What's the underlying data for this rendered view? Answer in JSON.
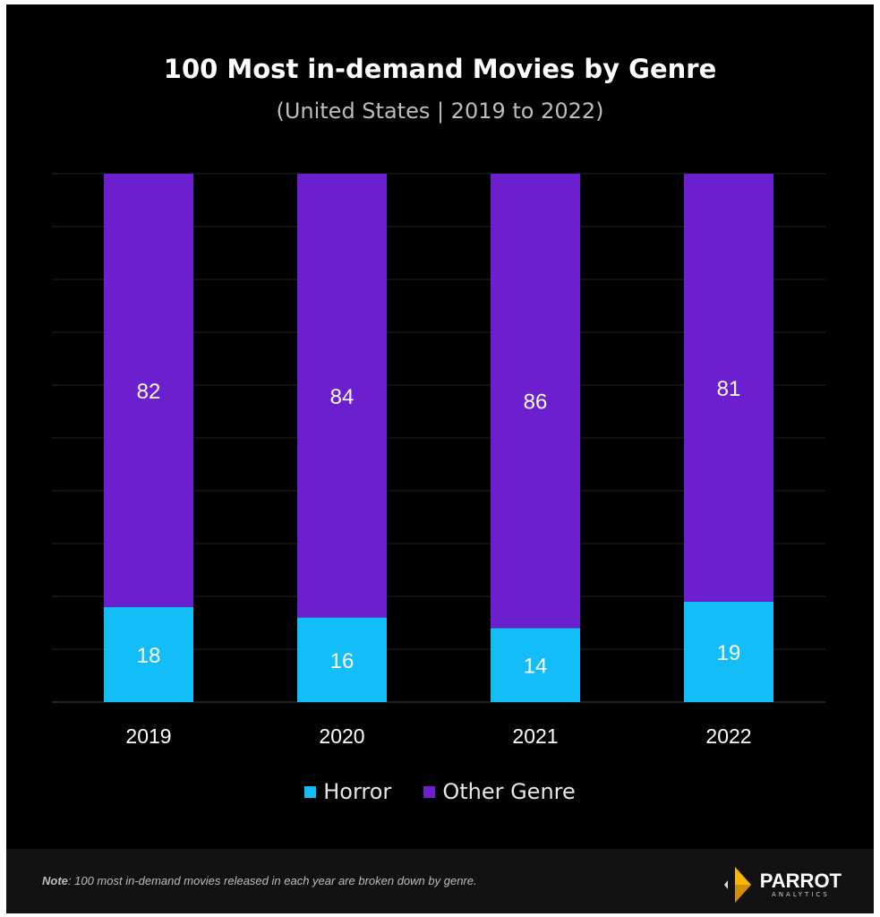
{
  "chart_data": {
    "type": "bar",
    "stacked": true,
    "title": "100 Most in-demand Movies by Genre",
    "subtitle": "(United States  |  2019 to 2022)",
    "categories": [
      "2019",
      "2020",
      "2021",
      "2022"
    ],
    "series": [
      {
        "name": "Horror",
        "values": [
          18,
          16,
          14,
          19
        ],
        "color": "#12bdf8"
      },
      {
        "name": "Other Genre",
        "values": [
          82,
          84,
          86,
          81
        ],
        "color": "#6b1fcf"
      }
    ],
    "ylim": [
      0,
      100
    ],
    "grid": true,
    "legend": "bottom",
    "background": "#000000"
  },
  "footer": {
    "note_label": "Note",
    "note_text": ": 100 most in-demand movies released in each year are broken down by genre.",
    "logo_text": "PARROT",
    "logo_sub": "ANALYTICS"
  }
}
